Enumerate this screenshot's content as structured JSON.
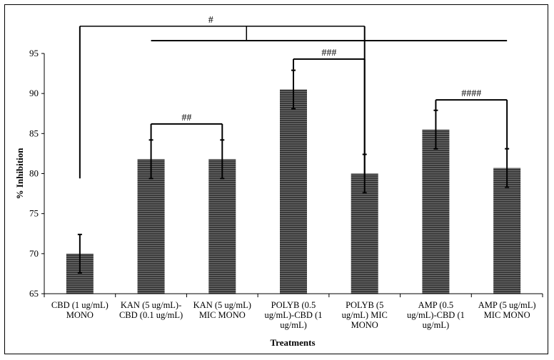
{
  "chart_data": {
    "type": "bar",
    "title": "",
    "xlabel": "Treatments",
    "ylabel": "% Inhibition",
    "ylim": [
      65,
      95
    ],
    "yticks": [
      65,
      70,
      75,
      80,
      85,
      90,
      95
    ],
    "grid": false,
    "categories": [
      [
        "CBD (1 ug/mL)",
        "MONO"
      ],
      [
        "KAN (5 ug/mL)-",
        "CBD (0.1 ug/mL)"
      ],
      [
        "KAN (5 ug/mL)",
        "MIC MONO"
      ],
      [
        "POLYB (0.5",
        "ug/mL)-CBD (1",
        "ug/mL)"
      ],
      [
        "POLYB (5",
        "ug/mL) MIC",
        "MONO"
      ],
      [
        "AMP (0.5",
        "ug/mL)-CBD (1",
        "ug/mL)"
      ],
      [
        "AMP (5 ug/mL)",
        "MIC MONO"
      ]
    ],
    "values": [
      70.0,
      81.8,
      81.8,
      90.5,
      80.0,
      85.5,
      80.7
    ],
    "errors": [
      2.4,
      2.4,
      2.4,
      2.4,
      2.4,
      2.4,
      2.4
    ],
    "bar_color": "#3a3a3a",
    "significance": [
      {
        "label": "#",
        "from": 0,
        "to": 4,
        "y_from": 79.4,
        "y_to": 79.4,
        "top": 98.4
      },
      {
        "label": "",
        "from": 1,
        "to": 6,
        "y_from": 96.6,
        "y_to": 96.6,
        "top": 96.6
      },
      {
        "label": "##",
        "from": 1,
        "to": 2,
        "y_from": 84.2,
        "y_to": 84.2,
        "top": 86.2
      },
      {
        "label": "###",
        "from": 3,
        "to": 4,
        "y_from": 93.0,
        "y_to": 82.4,
        "top": 94.3
      },
      {
        "label": "####",
        "from": 5,
        "to": 6,
        "y_from": 87.9,
        "y_to": 83.1,
        "top": 89.2
      }
    ]
  }
}
